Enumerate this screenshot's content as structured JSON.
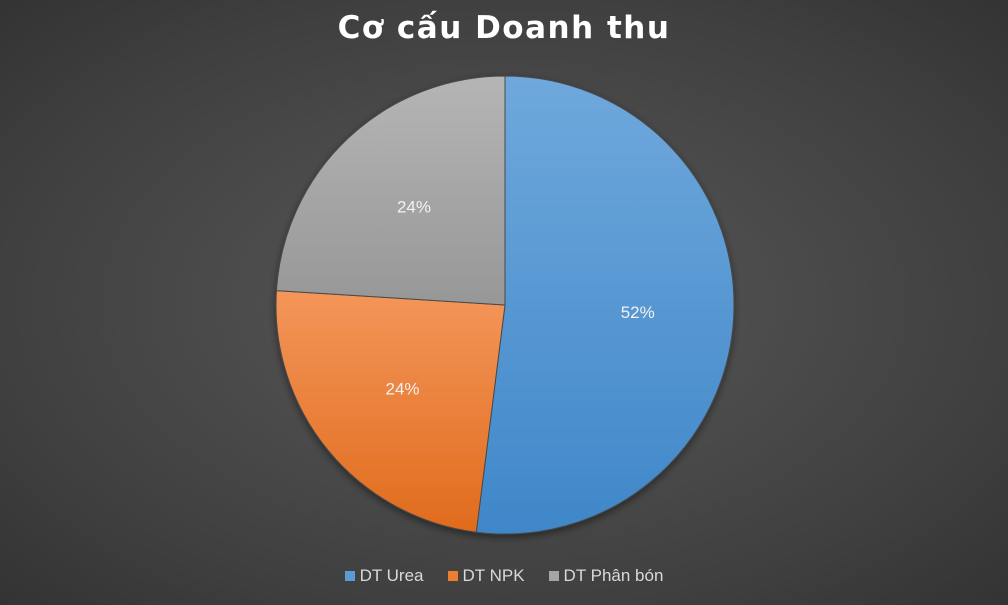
{
  "chart_data": {
    "type": "pie",
    "title": "Cơ cấu Doanh thu",
    "categories": [
      "DT Urea",
      "DT NPK",
      "DT Phân bón"
    ],
    "values": [
      52,
      24,
      24
    ],
    "data_labels": [
      "52%",
      "24%",
      "24%"
    ],
    "colors": [
      "#5b9bd5",
      "#ed7d31",
      "#a5a5a5"
    ],
    "legend_position": "bottom",
    "start_angle": "top, clockwise"
  }
}
